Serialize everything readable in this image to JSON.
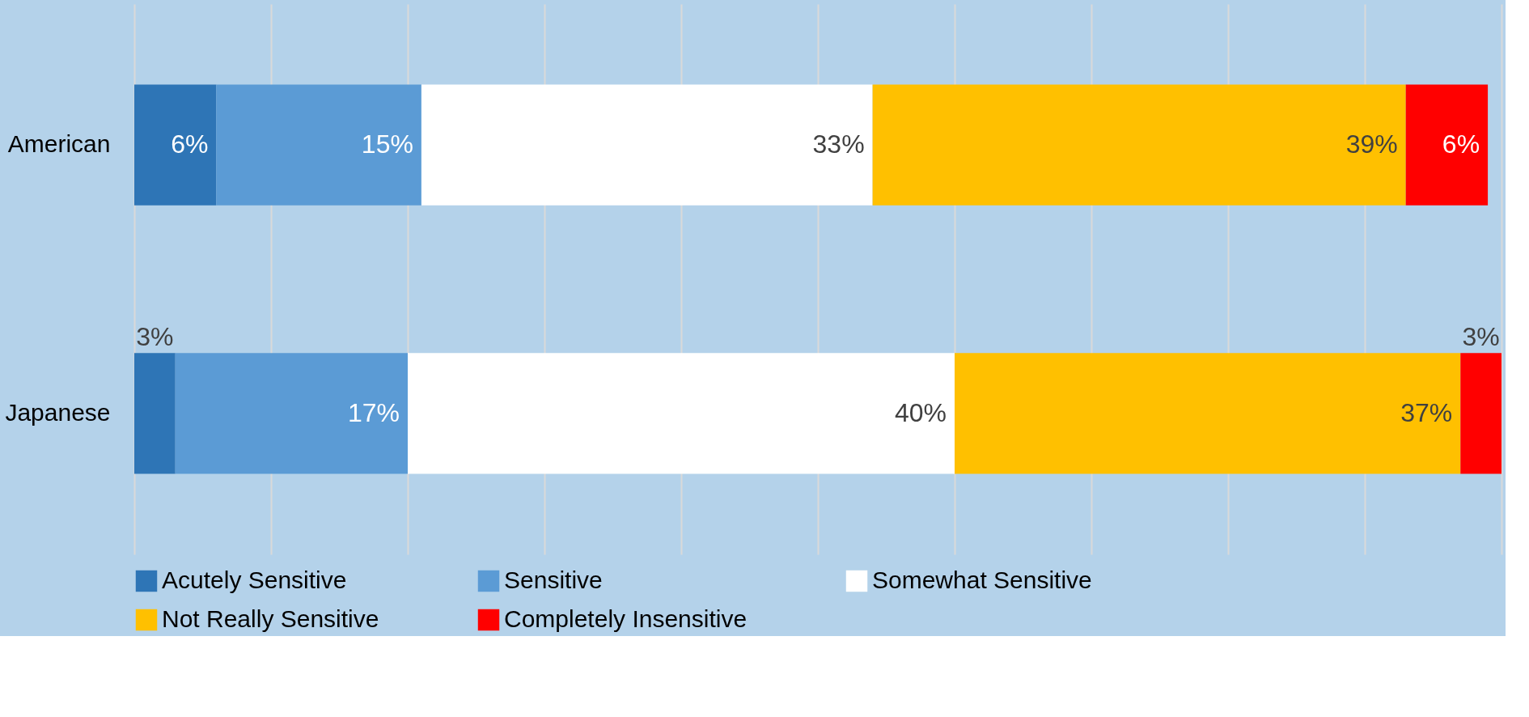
{
  "chart_data": {
    "type": "bar",
    "orientation": "horizontal",
    "stacked": true,
    "categories": [
      "American",
      "Japanese"
    ],
    "series": [
      {
        "name": "Acutely Sensitive",
        "color": "#2e75b6",
        "values": [
          6,
          3
        ],
        "value_labels": [
          "6%",
          "3%"
        ]
      },
      {
        "name": "Sensitive",
        "color": "#5b9bd5",
        "values": [
          15,
          17
        ],
        "value_labels": [
          "15%",
          "17%"
        ]
      },
      {
        "name": "Somewhat Sensitive",
        "color": "#ffffff",
        "values": [
          33,
          40
        ],
        "value_labels": [
          "33%",
          "40%"
        ]
      },
      {
        "name": "Not Really Sensitive",
        "color": "#ffc000",
        "values": [
          39,
          37
        ],
        "value_labels": [
          "39%",
          "37%"
        ]
      },
      {
        "name": "Completely Insensitive",
        "color": "#ff0000",
        "values": [
          6,
          3
        ],
        "value_labels": [
          "6%",
          "3%"
        ]
      }
    ],
    "xlim": [
      0,
      100
    ],
    "xticks": [
      {
        "value": 0,
        "label": null
      },
      {
        "value": 10,
        "label": null
      },
      {
        "value": 20,
        "label": null
      },
      {
        "value": 30,
        "label": null
      },
      {
        "value": 40,
        "label": null
      },
      {
        "value": 50,
        "label": null
      },
      {
        "value": 60,
        "label": null
      },
      {
        "value": 70,
        "label": null
      },
      {
        "value": 80,
        "label": null
      },
      {
        "value": 90,
        "label": null
      },
      {
        "value": 100,
        "label": null
      }
    ],
    "grid": "x",
    "legend": "bottom",
    "tick_labels": "y"
  }
}
